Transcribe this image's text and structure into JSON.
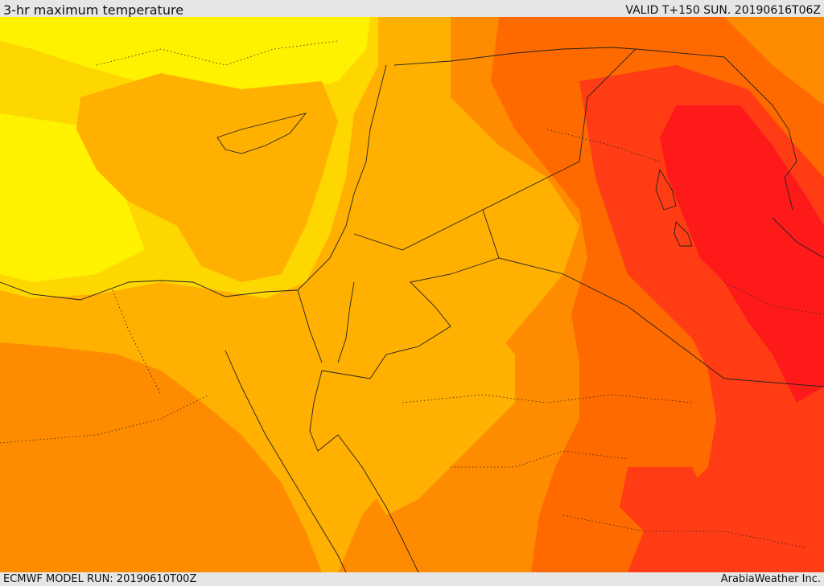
{
  "header": {
    "title": "3-hr maximum temperature",
    "valid": "VALID T+150 SUN. 20190616T06Z"
  },
  "footer": {
    "model_run": "ECMWF MODEL RUN: 20190610T00Z",
    "credit": "ArabiaWeather Inc."
  },
  "map": {
    "colors": {
      "pale_yellow": "#fff200",
      "yellow": "#ffd700",
      "light_orange": "#ffb000",
      "orange": "#ff8c00",
      "dark_orange": "#ff6a00",
      "red_orange": "#ff3c14",
      "red": "#ff1a1a"
    }
  }
}
